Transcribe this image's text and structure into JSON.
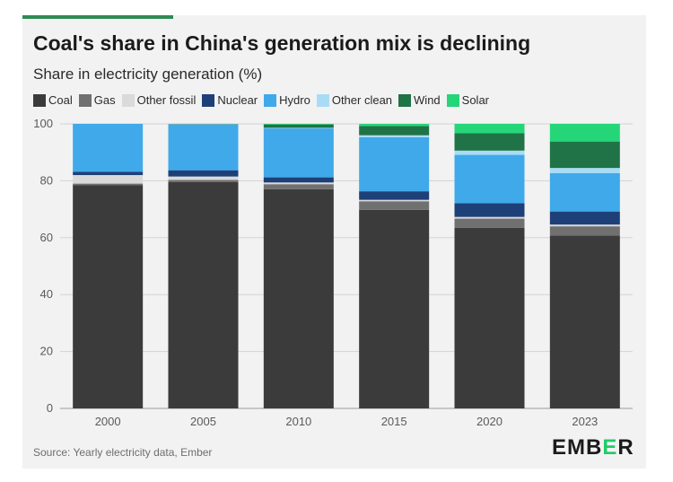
{
  "title": "Coal's share in China's generation mix is declining",
  "subtitle": "Share in electricity generation (%)",
  "source": "Source: Yearly electricity data, Ember",
  "logo": {
    "text": "EMBER",
    "accent_color": "#1fcc6a",
    "icon": "ember-logo"
  },
  "colors": {
    "accent_line": "#2f8a55",
    "background": "#f2f2f2"
  },
  "chart_data": {
    "type": "bar",
    "stacked": true,
    "categories": [
      "2000",
      "2005",
      "2010",
      "2015",
      "2020",
      "2023"
    ],
    "ylim": [
      0,
      100
    ],
    "yticks": [
      0,
      20,
      40,
      60,
      80,
      100
    ],
    "grid": true,
    "legend_position": "top-left",
    "series": [
      {
        "name": "Coal",
        "color": "#3b3b3b",
        "values": [
          78.5,
          79.5,
          77.0,
          69.8,
          63.5,
          60.8
        ]
      },
      {
        "name": "Gas",
        "color": "#707070",
        "values": [
          0.5,
          0.8,
          1.8,
          3.0,
          3.2,
          3.2
        ]
      },
      {
        "name": "Other fossil",
        "color": "#dadada",
        "values": [
          3.0,
          1.2,
          0.6,
          0.5,
          0.6,
          0.6
        ]
      },
      {
        "name": "Nuclear",
        "color": "#1e4078",
        "values": [
          1.2,
          2.2,
          1.8,
          3.0,
          4.8,
          4.6
        ]
      },
      {
        "name": "Hydro",
        "color": "#3fa9ea",
        "values": [
          16.8,
          16.1,
          17.2,
          19.0,
          17.0,
          13.5
        ]
      },
      {
        "name": "Other clean",
        "color": "#a8dcf6",
        "values": [
          0.0,
          0.1,
          0.2,
          0.7,
          1.5,
          1.8
        ]
      },
      {
        "name": "Wind",
        "color": "#1f7347",
        "values": [
          0.0,
          0.1,
          1.2,
          3.2,
          6.1,
          9.3
        ]
      },
      {
        "name": "Solar",
        "color": "#24d678",
        "values": [
          0.0,
          0.0,
          0.2,
          0.8,
          3.3,
          6.2
        ]
      }
    ]
  }
}
